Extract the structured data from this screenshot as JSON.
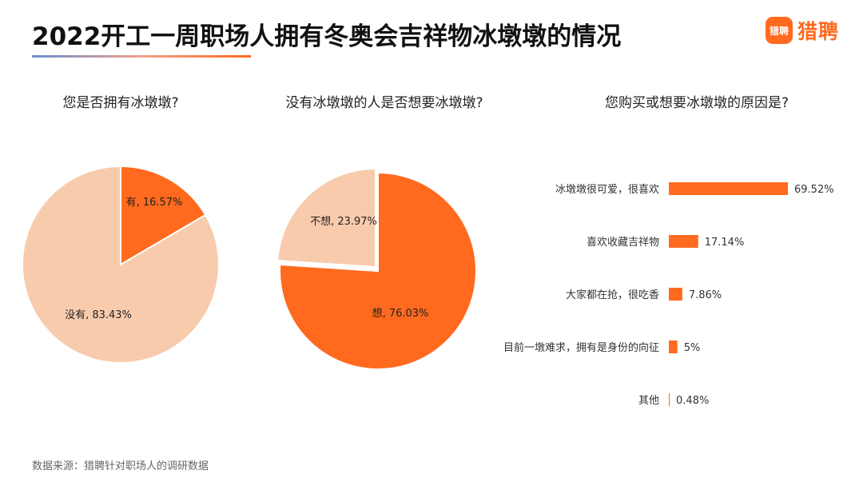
{
  "title": "2022开工一周职场人拥有冬奥会吉祥物冰墩墩的情况",
  "logo": {
    "badge_text": "猎聘",
    "text": "猎聘",
    "color": "#ff6a1f"
  },
  "source": "数据来源：猎聘针对职场人的调研数据",
  "colors": {
    "accent": "#ff6a1f",
    "light": "#f8cbac"
  },
  "chart_data": [
    {
      "type": "pie",
      "title": "您是否拥有冰墩墩?",
      "slices": [
        {
          "label": "有",
          "value": 16.57,
          "display": "有, 16.57%",
          "color": "#ff6a1f"
        },
        {
          "label": "没有",
          "value": 83.43,
          "display": "没有, 83.43%",
          "color": "#f8cbac"
        }
      ]
    },
    {
      "type": "pie",
      "title": "没有冰墩墩的人是否想要冰墩墩?",
      "slices": [
        {
          "label": "想",
          "value": 76.03,
          "display": "想, 76.03%",
          "color": "#ff6a1f"
        },
        {
          "label": "不想",
          "value": 23.97,
          "display": "不想, 23.97%",
          "color": "#f8cbac"
        }
      ]
    },
    {
      "type": "bar",
      "orientation": "horizontal",
      "title": "您购买或想要冰墩墩的原因是?",
      "categories": [
        "冰墩墩很可爱，很喜欢",
        "喜欢收藏吉祥物",
        "大家都在抢，很吃香",
        "目前一墩难求，拥有是身份的向征",
        "其他"
      ],
      "values": [
        69.52,
        17.14,
        7.86,
        5,
        0.48
      ],
      "value_labels": [
        "69.52%",
        "17.14%",
        "7.86%",
        "5%",
        "0.48%"
      ],
      "color": "#ff6a1f"
    }
  ]
}
